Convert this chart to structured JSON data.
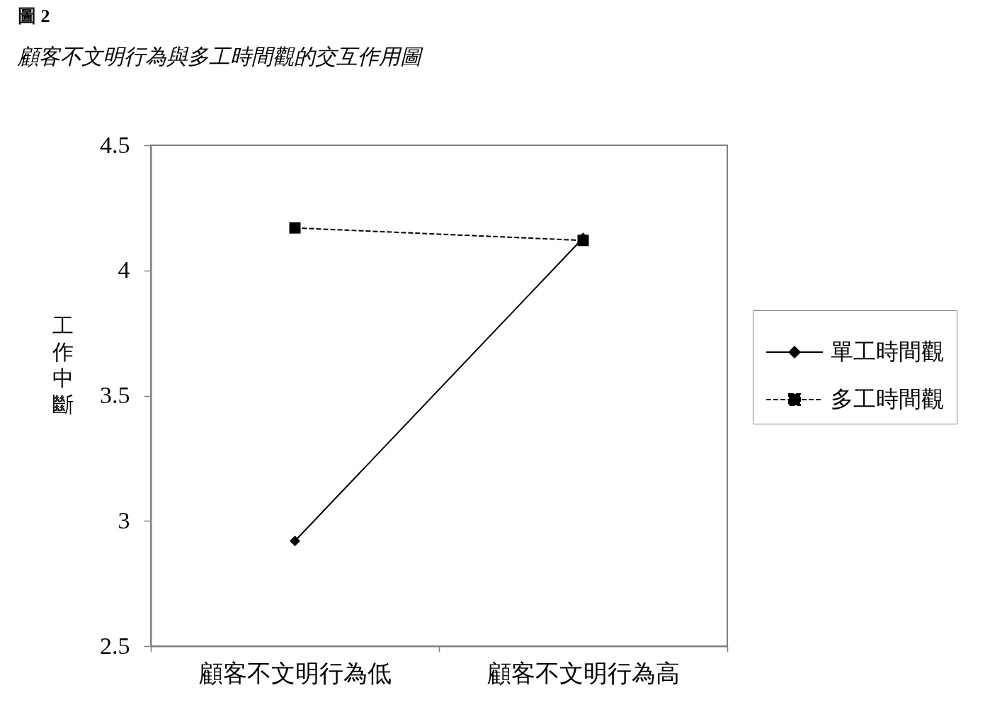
{
  "chart_data": {
    "type": "line",
    "title": "圖 2",
    "subtitle": "顧客不文明行為與多工時間觀的交互作用圖",
    "ylabel": "工作中斷",
    "categories": [
      "顧客不文明行為低",
      "顧客不文明行為高"
    ],
    "series": [
      {
        "name": "單工時間觀",
        "color": "#000000",
        "values": [
          2.92,
          4.13
        ],
        "marker": "diamond",
        "line_style": "solid"
      },
      {
        "name": "多工時間觀",
        "color": "#000000",
        "values": [
          4.17,
          4.12
        ],
        "marker": "square",
        "line_style": "dashed"
      }
    ],
    "ylim": [
      2.5,
      4.5
    ],
    "yticks": [
      2.5,
      3,
      3.5,
      4,
      4.5
    ],
    "grid": false,
    "legend": "right"
  }
}
